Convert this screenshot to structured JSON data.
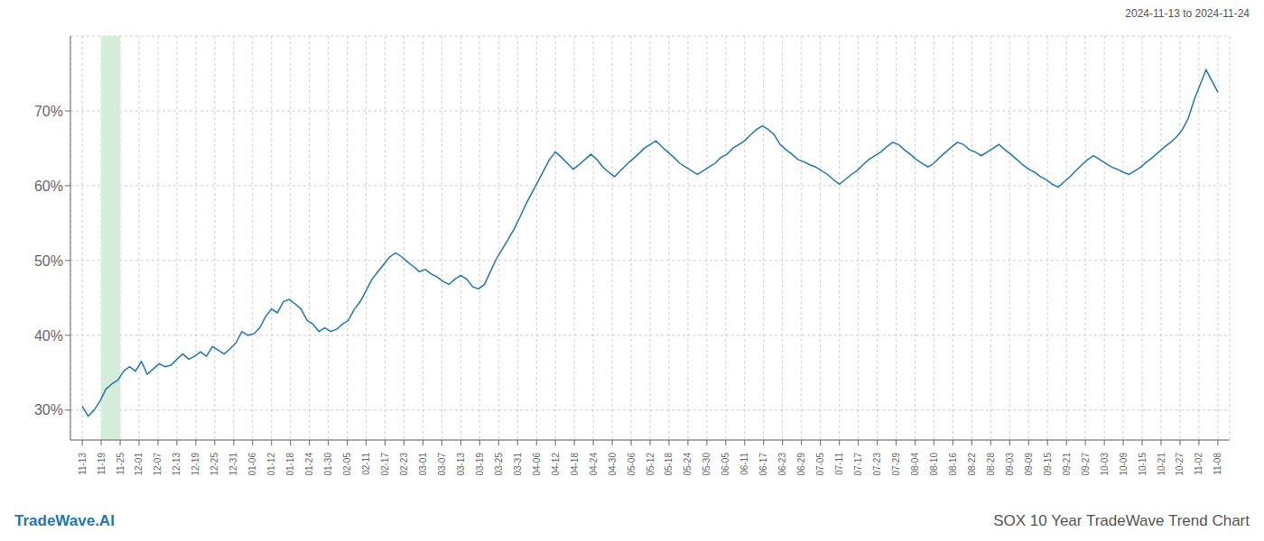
{
  "chart_data": {
    "type": "line",
    "title": "SOX 10 Year TradeWave Trend Chart",
    "subtitle": "2024-11-13 to 2024-11-24",
    "annotations": [
      {
        "text": "TradeWave.AI",
        "color": "#1f77b4"
      }
    ],
    "color": "#1f77b4",
    "grid": true,
    "spans": [
      {
        "x": [
          3.2,
          6.4
        ],
        "color": "#d4edda"
      }
    ],
    "x": [
      0,
      1,
      2,
      3,
      4,
      5,
      6,
      7,
      8,
      9,
      10,
      11,
      12,
      13,
      14,
      15,
      16,
      17,
      18,
      19,
      20,
      21,
      22,
      23,
      24,
      25,
      26,
      27,
      28,
      29,
      30,
      31,
      32,
      33,
      34,
      35,
      36,
      37,
      38,
      39,
      40,
      41,
      42,
      43,
      44,
      45,
      46,
      47,
      48,
      49,
      50,
      51,
      52,
      53,
      54,
      55,
      56,
      57,
      58,
      59,
      60,
      61,
      62,
      63,
      64,
      65,
      66,
      67,
      68,
      69,
      70,
      71,
      72,
      73,
      74,
      75,
      76,
      77,
      78,
      79,
      80,
      81,
      82,
      83,
      84,
      85,
      86,
      87,
      88,
      89,
      90,
      91,
      92,
      93,
      94,
      95,
      96,
      97,
      98,
      99,
      100,
      101,
      102,
      103,
      104,
      105,
      106,
      107,
      108,
      109,
      110,
      111,
      112,
      113,
      114,
      115,
      116,
      117,
      118,
      119,
      120,
      121,
      122,
      123,
      124,
      125,
      126,
      127,
      128,
      129,
      130,
      131,
      132,
      133,
      134,
      135,
      136,
      137,
      138,
      139,
      140,
      141,
      142,
      143,
      144,
      145,
      146,
      147,
      148,
      149,
      150,
      151,
      152,
      153,
      154,
      155,
      156,
      157,
      158,
      159,
      160,
      161,
      162,
      163,
      164,
      165,
      166,
      167,
      168,
      169,
      170,
      171,
      172,
      173,
      174,
      175,
      176,
      177,
      178,
      179,
      180,
      181,
      182,
      183,
      184,
      185,
      186,
      187,
      188,
      189,
      190,
      191,
      192
    ],
    "values": [
      30.5,
      29.2,
      30.0,
      31.2,
      32.8,
      33.5,
      34.0,
      35.2,
      35.8,
      35.2,
      36.5,
      34.8,
      35.5,
      36.2,
      35.8,
      36.0,
      36.8,
      37.5,
      36.8,
      37.2,
      37.8,
      37.2,
      38.5,
      38.0,
      37.5,
      38.2,
      39.0,
      40.5,
      40.0,
      40.2,
      41.0,
      42.5,
      43.5,
      43.0,
      44.5,
      44.8,
      44.2,
      43.5,
      42.0,
      41.5,
      40.5,
      41.0,
      40.5,
      40.8,
      41.5,
      42.0,
      43.5,
      44.5,
      46.0,
      47.5,
      48.5,
      49.5,
      50.5,
      51.0,
      50.5,
      49.8,
      49.2,
      48.5,
      48.8,
      48.2,
      47.8,
      47.2,
      46.8,
      47.5,
      48.0,
      47.5,
      46.5,
      46.2,
      46.8,
      48.5,
      50.2,
      51.5,
      52.8,
      54.2,
      55.8,
      57.5,
      59.0,
      60.5,
      62.0,
      63.5,
      64.5,
      63.8,
      63.0,
      62.2,
      62.8,
      63.5,
      64.2,
      63.5,
      62.5,
      61.8,
      61.2,
      62.0,
      62.8,
      63.5,
      64.2,
      65.0,
      65.5,
      66.0,
      65.2,
      64.5,
      63.8,
      63.0,
      62.5,
      62.0,
      61.5,
      62.0,
      62.5,
      63.0,
      63.8,
      64.2,
      65.0,
      65.5,
      66.0,
      66.8,
      67.5,
      68.0,
      67.5,
      66.8,
      65.5,
      64.8,
      64.2,
      63.5,
      63.2,
      62.8,
      62.5,
      62.0,
      61.5,
      60.8,
      60.2,
      60.8,
      61.5,
      62.0,
      62.8,
      63.5,
      64.0,
      64.5,
      65.2,
      65.8,
      65.5,
      64.8,
      64.2,
      63.5,
      63.0,
      62.5,
      63.0,
      63.8,
      64.5,
      65.2,
      65.8,
      65.5,
      64.8,
      64.5,
      64.0,
      64.5,
      65.0,
      65.5,
      64.8,
      64.2,
      63.5,
      62.8,
      62.2,
      61.8,
      61.2,
      60.8,
      60.2,
      59.8,
      60.5,
      61.2,
      62.0,
      62.8,
      63.5,
      64.0,
      63.5,
      63.0,
      62.5,
      62.2,
      61.8,
      61.5,
      62.0,
      62.5,
      63.2,
      63.8,
      64.5,
      65.2,
      65.8,
      66.5,
      67.5,
      69.0,
      71.5,
      73.5,
      75.5,
      74.0,
      72.5
    ],
    "xlim": [
      -2,
      194
    ],
    "xticks": [
      {
        "value": 0,
        "label": "11-13"
      },
      {
        "value": 3.2,
        "label": "11-19"
      },
      {
        "value": 6.4,
        "label": "11-25"
      },
      {
        "value": 9.6,
        "label": "12-01"
      },
      {
        "value": 12.8,
        "label": "12-07"
      },
      {
        "value": 16,
        "label": "12-13"
      },
      {
        "value": 19.2,
        "label": "12-19"
      },
      {
        "value": 22.4,
        "label": "12-25"
      },
      {
        "value": 25.6,
        "label": "12-31"
      },
      {
        "value": 28.8,
        "label": "01-06"
      },
      {
        "value": 32,
        "label": "01-12"
      },
      {
        "value": 35.2,
        "label": "01-18"
      },
      {
        "value": 38.4,
        "label": "01-24"
      },
      {
        "value": 41.6,
        "label": "01-30"
      },
      {
        "value": 44.8,
        "label": "02-05"
      },
      {
        "value": 48,
        "label": "02-11"
      },
      {
        "value": 51.2,
        "label": "02-17"
      },
      {
        "value": 54.4,
        "label": "02-23"
      },
      {
        "value": 57.6,
        "label": "03-01"
      },
      {
        "value": 60.8,
        "label": "03-07"
      },
      {
        "value": 64,
        "label": "03-13"
      },
      {
        "value": 67.2,
        "label": "03-19"
      },
      {
        "value": 70.4,
        "label": "03-25"
      },
      {
        "value": 73.6,
        "label": "03-31"
      },
      {
        "value": 76.8,
        "label": "04-06"
      },
      {
        "value": 80,
        "label": "04-12"
      },
      {
        "value": 83.2,
        "label": "04-18"
      },
      {
        "value": 86.4,
        "label": "04-24"
      },
      {
        "value": 89.6,
        "label": "04-30"
      },
      {
        "value": 92.8,
        "label": "05-06"
      },
      {
        "value": 96,
        "label": "05-12"
      },
      {
        "value": 99.2,
        "label": "05-18"
      },
      {
        "value": 102.4,
        "label": "05-24"
      },
      {
        "value": 105.6,
        "label": "05-30"
      },
      {
        "value": 108.8,
        "label": "06-05"
      },
      {
        "value": 112,
        "label": "06-11"
      },
      {
        "value": 115.2,
        "label": "06-17"
      },
      {
        "value": 118.4,
        "label": "06-23"
      },
      {
        "value": 121.6,
        "label": "06-29"
      },
      {
        "value": 124.8,
        "label": "07-05"
      },
      {
        "value": 128,
        "label": "07-11"
      },
      {
        "value": 131.2,
        "label": "07-17"
      },
      {
        "value": 134.4,
        "label": "07-23"
      },
      {
        "value": 137.6,
        "label": "07-29"
      },
      {
        "value": 140.8,
        "label": "08-04"
      },
      {
        "value": 144,
        "label": "08-10"
      },
      {
        "value": 147.2,
        "label": "08-16"
      },
      {
        "value": 150.4,
        "label": "08-22"
      },
      {
        "value": 153.6,
        "label": "08-28"
      },
      {
        "value": 156.8,
        "label": "09-03"
      },
      {
        "value": 160,
        "label": "09-09"
      },
      {
        "value": 163.2,
        "label": "09-15"
      },
      {
        "value": 166.4,
        "label": "09-21"
      },
      {
        "value": 169.6,
        "label": "09-27"
      },
      {
        "value": 172.8,
        "label": "10-03"
      },
      {
        "value": 176,
        "label": "10-09"
      },
      {
        "value": 179.2,
        "label": "10-15"
      },
      {
        "value": 182.4,
        "label": "10-21"
      },
      {
        "value": 185.6,
        "label": "10-27"
      },
      {
        "value": 188.8,
        "label": "11-02"
      },
      {
        "value": 192,
        "label": "11-08"
      }
    ],
    "ylim": [
      26,
      80
    ],
    "yticks": [
      {
        "value": 30,
        "label": "30%"
      },
      {
        "value": 40,
        "label": "40%"
      },
      {
        "value": 50,
        "label": "50%"
      },
      {
        "value": 60,
        "label": "60%"
      },
      {
        "value": 70,
        "label": "70%"
      }
    ]
  }
}
